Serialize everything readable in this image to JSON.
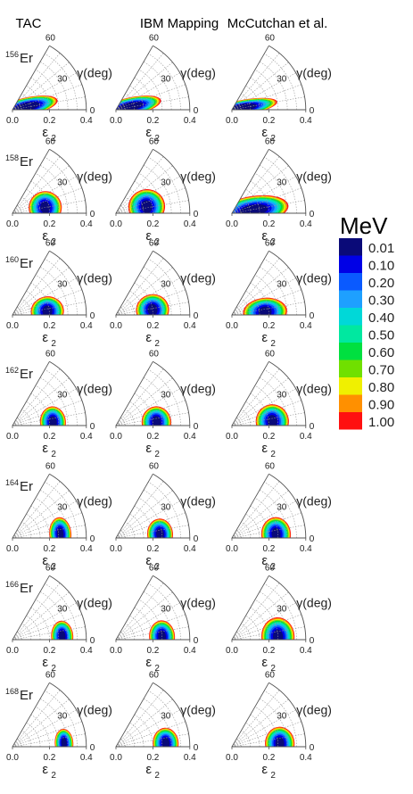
{
  "chart_data": {
    "type": "heatmap",
    "panel_type": "polar-sector contour",
    "columns": [
      "TAC",
      "IBM Mapping",
      "McCutchan et al."
    ],
    "rows": [
      {
        "mass": "156",
        "element": "Er"
      },
      {
        "mass": "158",
        "element": "Er"
      },
      {
        "mass": "160",
        "element": "Er"
      },
      {
        "mass": "162",
        "element": "Er"
      },
      {
        "mass": "164",
        "element": "Er"
      },
      {
        "mass": "166",
        "element": "Er"
      },
      {
        "mass": "168",
        "element": "Er"
      }
    ],
    "radial_axis": {
      "label": "ε",
      "label_sub": "2",
      "ticks": [
        "0.0",
        "0.2",
        "0.4"
      ],
      "range": [
        0,
        0.4
      ]
    },
    "angular_axis": {
      "label": "γ(deg)",
      "ticks": [
        "0",
        "30",
        "60"
      ],
      "range": [
        0,
        60
      ]
    },
    "colorbar": {
      "title": "MeV",
      "levels": [
        "0.01",
        "0.10",
        "0.20",
        "0.30",
        "0.40",
        "0.50",
        "0.60",
        "0.70",
        "0.80",
        "0.90",
        "1.00"
      ],
      "colors": [
        "#0a0a78",
        "#0000e6",
        "#0a5aff",
        "#1ea0ff",
        "#00d8d8",
        "#00e8a0",
        "#00e040",
        "#70e000",
        "#f0f000",
        "#ff9000",
        "#ff1010"
      ]
    },
    "minima": [
      [
        {
          "beta": 0.08,
          "gamma": 12,
          "rb": 0.14,
          "gw": 30,
          "open": true
        },
        {
          "beta": 0.08,
          "gamma": 12,
          "rb": 0.14,
          "gw": 30,
          "open": true
        },
        {
          "beta": 0.06,
          "gamma": 10,
          "rb": 0.16,
          "gw": 34,
          "open": true
        }
      ],
      [
        {
          "beta": 0.18,
          "gamma": 10,
          "rb": 0.09,
          "gw": 26,
          "open": false
        },
        {
          "beta": 0.17,
          "gamma": 12,
          "rb": 0.1,
          "gw": 30,
          "open": false
        },
        {
          "beta": 0.12,
          "gamma": 8,
          "rb": 0.16,
          "gw": 34,
          "open": true
        }
      ],
      [
        {
          "beta": 0.19,
          "gamma": 6,
          "rb": 0.09,
          "gw": 22,
          "open": false
        },
        {
          "beta": 0.2,
          "gamma": 8,
          "rb": 0.09,
          "gw": 22,
          "open": false
        },
        {
          "beta": 0.18,
          "gamma": 5,
          "rb": 0.12,
          "gw": 22,
          "open": false
        }
      ],
      [
        {
          "beta": 0.22,
          "gamma": 5,
          "rb": 0.07,
          "gw": 20,
          "open": false
        },
        {
          "beta": 0.22,
          "gamma": 5,
          "rb": 0.08,
          "gw": 20,
          "open": false
        },
        {
          "beta": 0.22,
          "gamma": 6,
          "rb": 0.09,
          "gw": 22,
          "open": false
        }
      ],
      [
        {
          "beta": 0.26,
          "gamma": 5,
          "rb": 0.06,
          "gw": 18,
          "open": false
        },
        {
          "beta": 0.24,
          "gamma": 5,
          "rb": 0.07,
          "gw": 18,
          "open": false
        },
        {
          "beta": 0.24,
          "gamma": 5,
          "rb": 0.08,
          "gw": 20,
          "open": false
        }
      ],
      [
        {
          "beta": 0.27,
          "gamma": 4,
          "rb": 0.06,
          "gw": 16,
          "open": false
        },
        {
          "beta": 0.25,
          "gamma": 4,
          "rb": 0.07,
          "gw": 18,
          "open": false
        },
        {
          "beta": 0.25,
          "gamma": 4,
          "rb": 0.09,
          "gw": 22,
          "open": false
        }
      ],
      [
        {
          "beta": 0.28,
          "gamma": 4,
          "rb": 0.05,
          "gw": 14,
          "open": false
        },
        {
          "beta": 0.27,
          "gamma": 4,
          "rb": 0.07,
          "gw": 16,
          "open": false
        },
        {
          "beta": 0.26,
          "gamma": 4,
          "rb": 0.08,
          "gw": 18,
          "open": false
        }
      ]
    ]
  }
}
